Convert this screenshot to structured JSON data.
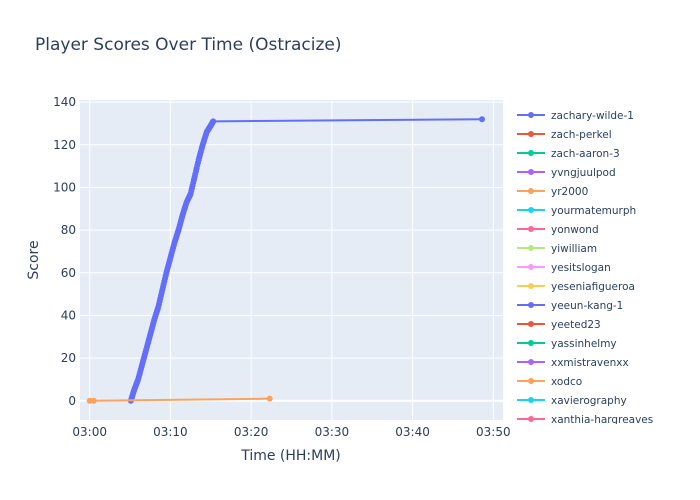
{
  "chart_data": {
    "type": "line",
    "title": "Player Scores Over Time (Ostracize)",
    "xlabel": "Time (HH:MM)",
    "ylabel": "Score",
    "x_ticks": [
      "03:00",
      "03:10",
      "03:20",
      "03:30",
      "03:40",
      "03:50"
    ],
    "x_range_minutes": [
      -1.2,
      51.2
    ],
    "ylim": [
      -9,
      141
    ],
    "y_ticks": [
      0,
      20,
      40,
      60,
      80,
      100,
      120,
      140
    ],
    "grid": true,
    "legend_position": "right",
    "series": [
      {
        "name": "zachary-wilde-1",
        "color": "#636efa",
        "x_minutes": [
          5.1,
          5.5,
          6.0,
          6.5,
          7.0,
          7.5,
          8.0,
          8.5,
          9.0,
          9.5,
          10.0,
          10.5,
          11.0,
          11.5,
          12.0,
          12.5,
          13.0,
          13.5,
          14.0,
          14.5,
          15.0,
          15.3,
          48.6
        ],
        "y": [
          0,
          5,
          10,
          17,
          24,
          31,
          38,
          44,
          52,
          60,
          67,
          74,
          80,
          87,
          93,
          97,
          105,
          113,
          120,
          126,
          129,
          131,
          132
        ]
      },
      {
        "name": "yr2000",
        "color": "#ffa15a",
        "x_minutes": [
          0.0,
          0.5,
          22.3
        ],
        "y": [
          0,
          0,
          1
        ]
      }
    ],
    "legend": [
      {
        "name": "zachary-wilde-1",
        "color": "#636efa"
      },
      {
        "name": "zach-perkel",
        "color": "#ef553b"
      },
      {
        "name": "zach-aaron-3",
        "color": "#00cc96"
      },
      {
        "name": "yvngjuulpod",
        "color": "#ab63fa"
      },
      {
        "name": "yr2000",
        "color": "#ffa15a"
      },
      {
        "name": "yourmatemurph",
        "color": "#19d3f3"
      },
      {
        "name": "yonwond",
        "color": "#ff6692"
      },
      {
        "name": "yiwilliam",
        "color": "#b6e880"
      },
      {
        "name": "yesitslogan",
        "color": "#ff97ff"
      },
      {
        "name": "yeseniafigueroa",
        "color": "#fecb52"
      },
      {
        "name": "yeeun-kang-1",
        "color": "#636efa"
      },
      {
        "name": "yeeted23",
        "color": "#ef553b"
      },
      {
        "name": "yassinhelmy",
        "color": "#00cc96"
      },
      {
        "name": "xxmistravenxx",
        "color": "#ab63fa"
      },
      {
        "name": "xodco",
        "color": "#ffa15a"
      },
      {
        "name": "xavierography",
        "color": "#19d3f3"
      },
      {
        "name": "xanthia-hargreaves",
        "color": "#ff6692"
      }
    ]
  }
}
